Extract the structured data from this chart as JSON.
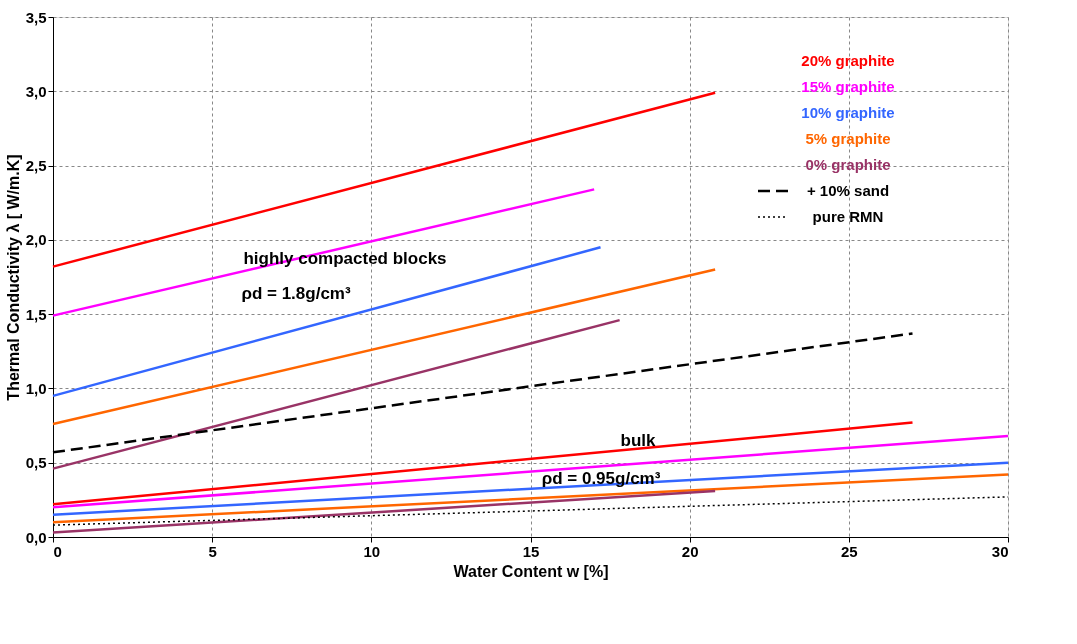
{
  "chart_data": {
    "type": "line",
    "xlabel": "Water Content w [%]",
    "ylabel": "Thermal Conductivity λ  [ W/m.K]",
    "xlim": [
      0,
      30
    ],
    "xticks": [
      0,
      5,
      10,
      15,
      20,
      25,
      30
    ],
    "ylim": [
      0,
      3.5
    ],
    "yticks": [
      {
        "value": 0,
        "label": "0,0"
      },
      {
        "value": 0.5,
        "label": "0,5"
      },
      {
        "value": 1,
        "label": "1,0"
      },
      {
        "value": 1.5,
        "label": "1,5"
      },
      {
        "value": 2,
        "label": "2,0"
      },
      {
        "value": 2.5,
        "label": "2,5"
      },
      {
        "value": 3,
        "label": "3,0"
      },
      {
        "value": 3.5,
        "label": "3,5"
      }
    ],
    "grid": true,
    "legend": "top right",
    "marker": "none",
    "series": [
      {
        "name": "20% graphite",
        "color": "#ff0000",
        "x": [
          0,
          20.8
        ],
        "values": [
          1.82,
          2.99
        ]
      },
      {
        "name": "15% graphite",
        "color": "#ff00ff",
        "x": [
          0,
          17
        ],
        "values": [
          1.49,
          2.34
        ]
      },
      {
        "name": "10% graphite",
        "color": "#3366ff",
        "x": [
          0,
          17.2
        ],
        "values": [
          0.95,
          1.95
        ]
      },
      {
        "name": "5% graphite",
        "color": "#ff6600",
        "x": [
          0,
          20.8
        ],
        "values": [
          0.76,
          1.8
        ]
      },
      {
        "name": "0% graphite",
        "color": "#993366",
        "x": [
          0,
          17.8
        ],
        "values": [
          0.46,
          1.46
        ]
      },
      {
        "name": "+ 10% sand",
        "color": "#000000",
        "line_style": "dashed",
        "x": [
          0,
          27
        ],
        "values": [
          0.57,
          1.37
        ]
      },
      {
        "color": "#ff0000",
        "x": [
          0,
          27
        ],
        "values": [
          0.22,
          0.77
        ]
      },
      {
        "color": "#ff00ff",
        "x": [
          0,
          30
        ],
        "values": [
          0.2,
          0.68
        ]
      },
      {
        "color": "#3366ff",
        "x": [
          0,
          30
        ],
        "values": [
          0.15,
          0.5
        ]
      },
      {
        "color": "#ff6600",
        "x": [
          0,
          30
        ],
        "values": [
          0.1,
          0.42
        ]
      },
      {
        "color": "#993366",
        "x": [
          0,
          20.8
        ],
        "values": [
          0.03,
          0.31
        ]
      },
      {
        "name": "pure RMN",
        "color": "#000000",
        "line_style": "dotted",
        "x": [
          0,
          30
        ],
        "values": [
          0.08,
          0.27
        ]
      }
    ],
    "annotations": [
      "highly compacted blocks",
      "ρd = 1.8g/cm³",
      "bulk",
      "ρd = 0.95g/cm³"
    ]
  }
}
